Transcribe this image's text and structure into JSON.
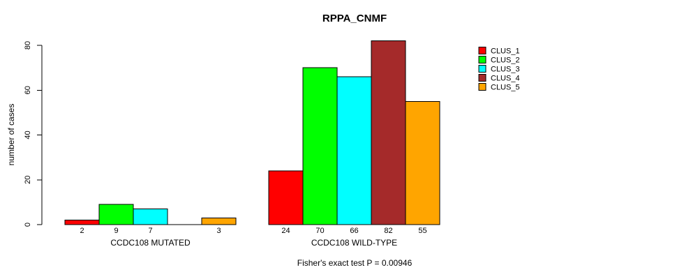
{
  "title": "RPPA_CNMF",
  "chart_data": {
    "type": "bar",
    "title": "RPPA_CNMF",
    "xlabel": "",
    "ylabel": "number of cases",
    "ylim": [
      0,
      80
    ],
    "yticks": [
      0,
      20,
      40,
      60,
      80
    ],
    "grid": false,
    "legend_position": "right",
    "categories": [
      "CCDC108 MUTATED",
      "CCDC108 WILD-TYPE"
    ],
    "series": [
      {
        "name": "CLUS_1",
        "color": "#ff0000",
        "values": [
          2,
          24
        ]
      },
      {
        "name": "CLUS_2",
        "color": "#00ff00",
        "values": [
          9,
          70
        ]
      },
      {
        "name": "CLUS_3",
        "color": "#00ffff",
        "values": [
          7,
          66
        ]
      },
      {
        "name": "CLUS_4",
        "color": "#a52a2a",
        "values": [
          0,
          82
        ]
      },
      {
        "name": "CLUS_5",
        "color": "#ffa500",
        "values": [
          3,
          55
        ]
      }
    ],
    "bar_value_labels": [
      [
        "2",
        "9",
        "7",
        "",
        "3"
      ],
      [
        "24",
        "70",
        "66",
        "82",
        "55"
      ]
    ],
    "annotation": "Fisher's exact test P = 0.00946"
  },
  "colors": {
    "background": "#ffffff",
    "axis": "#000000",
    "bar_border": "#000000",
    "text": "#000000"
  }
}
